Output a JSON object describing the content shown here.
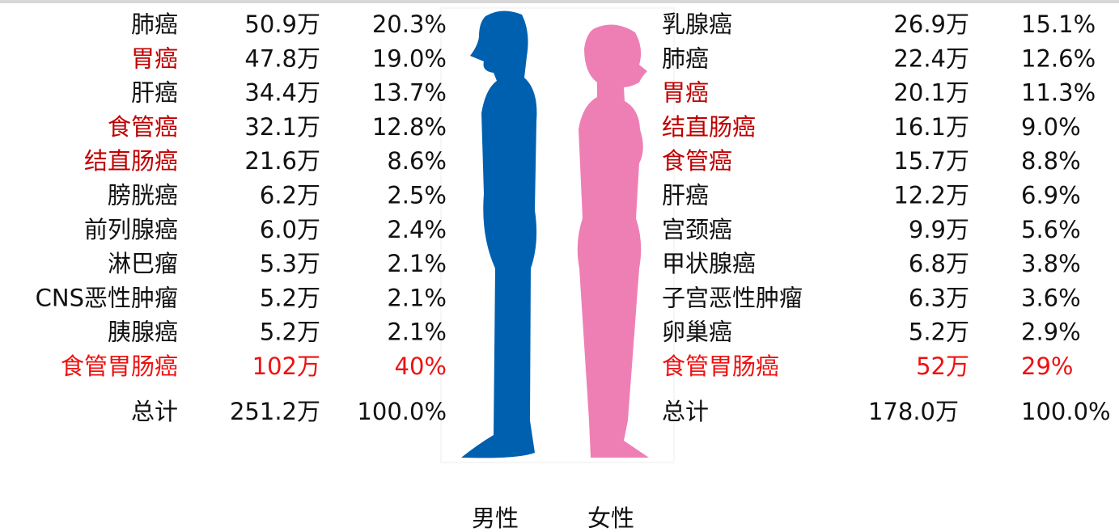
{
  "male": {
    "label": "男性",
    "rows": [
      {
        "name": "肺癌",
        "count": "50.9万",
        "percent": "20.3%",
        "colors": [
          "#111111",
          "#111111",
          "#111111"
        ]
      },
      {
        "name": "胃癌",
        "count": "47.8万",
        "percent": "19.0%",
        "colors": [
          "#c00000",
          "#111111",
          "#111111"
        ]
      },
      {
        "name": "肝癌",
        "count": "34.4万",
        "percent": "13.7%",
        "colors": [
          "#111111",
          "#111111",
          "#111111"
        ]
      },
      {
        "name": "食管癌",
        "count": "32.1万",
        "percent": "12.8%",
        "colors": [
          "#c00000",
          "#111111",
          "#111111"
        ]
      },
      {
        "name": "结直肠癌",
        "count": "21.6万",
        "percent": "8.6%",
        "colors": [
          "#c00000",
          "#111111",
          "#111111"
        ]
      },
      {
        "name": "膀胱癌",
        "count": "6.2万",
        "percent": "2.5%",
        "colors": [
          "#111111",
          "#111111",
          "#111111"
        ]
      },
      {
        "name": "前列腺癌",
        "count": "6.0万",
        "percent": "2.4%",
        "colors": [
          "#111111",
          "#111111",
          "#111111"
        ]
      },
      {
        "name": "淋巴瘤",
        "count": "5.3万",
        "percent": "2.1%",
        "colors": [
          "#111111",
          "#111111",
          "#111111"
        ]
      },
      {
        "name": "CNS恶性肿瘤",
        "count": "5.2万",
        "percent": "2.1%",
        "colors": [
          "#111111",
          "#111111",
          "#111111"
        ]
      },
      {
        "name": "胰腺癌",
        "count": "5.2万",
        "percent": "2.1%",
        "colors": [
          "#111111",
          "#111111",
          "#111111"
        ]
      },
      {
        "name": "食管胃肠癌",
        "count": "102万",
        "percent": "40%",
        "colors": [
          "#ee1111",
          "#ee1111",
          "#ee1111"
        ]
      }
    ],
    "total": {
      "name": "总计",
      "count": "251.2万",
      "percent": "100.0%"
    }
  },
  "female": {
    "label": "女性",
    "rows": [
      {
        "name": "乳腺癌",
        "count": "26.9万",
        "percent": "15.1%",
        "colors": [
          "#111111",
          "#111111",
          "#111111"
        ]
      },
      {
        "name": "肺癌",
        "count": "22.4万",
        "percent": "12.6%",
        "colors": [
          "#111111",
          "#111111",
          "#111111"
        ]
      },
      {
        "name": "胃癌",
        "count": "20.1万",
        "percent": "11.3%",
        "colors": [
          "#c00000",
          "#111111",
          "#111111"
        ]
      },
      {
        "name": "结直肠癌",
        "count": "16.1万",
        "percent": "9.0%",
        "colors": [
          "#c00000",
          "#111111",
          "#111111"
        ]
      },
      {
        "name": "食管癌",
        "count": "15.7万",
        "percent": "8.8%",
        "colors": [
          "#c00000",
          "#111111",
          "#111111"
        ]
      },
      {
        "name": "肝癌",
        "count": "12.2万",
        "percent": "6.9%",
        "colors": [
          "#111111",
          "#111111",
          "#111111"
        ]
      },
      {
        "name": "宫颈癌",
        "count": "9.9万",
        "percent": "5.6%",
        "colors": [
          "#111111",
          "#111111",
          "#111111"
        ]
      },
      {
        "name": "甲状腺癌",
        "count": "6.8万",
        "percent": "3.8%",
        "colors": [
          "#111111",
          "#111111",
          "#111111"
        ]
      },
      {
        "name": "子宫恶性肿瘤",
        "count": "6.3万",
        "percent": "3.6%",
        "colors": [
          "#111111",
          "#111111",
          "#111111"
        ]
      },
      {
        "name": "卵巢癌",
        "count": "5.2万",
        "percent": "2.9%",
        "colors": [
          "#111111",
          "#111111",
          "#111111"
        ]
      },
      {
        "name": "食管胃肠癌",
        "count": "52万",
        "percent": "29%",
        "colors": [
          "#ee1111",
          "#ee1111",
          "#ee1111"
        ]
      }
    ],
    "total": {
      "name": "总计",
      "count": "178.0万",
      "percent": "100.0%"
    }
  }
}
